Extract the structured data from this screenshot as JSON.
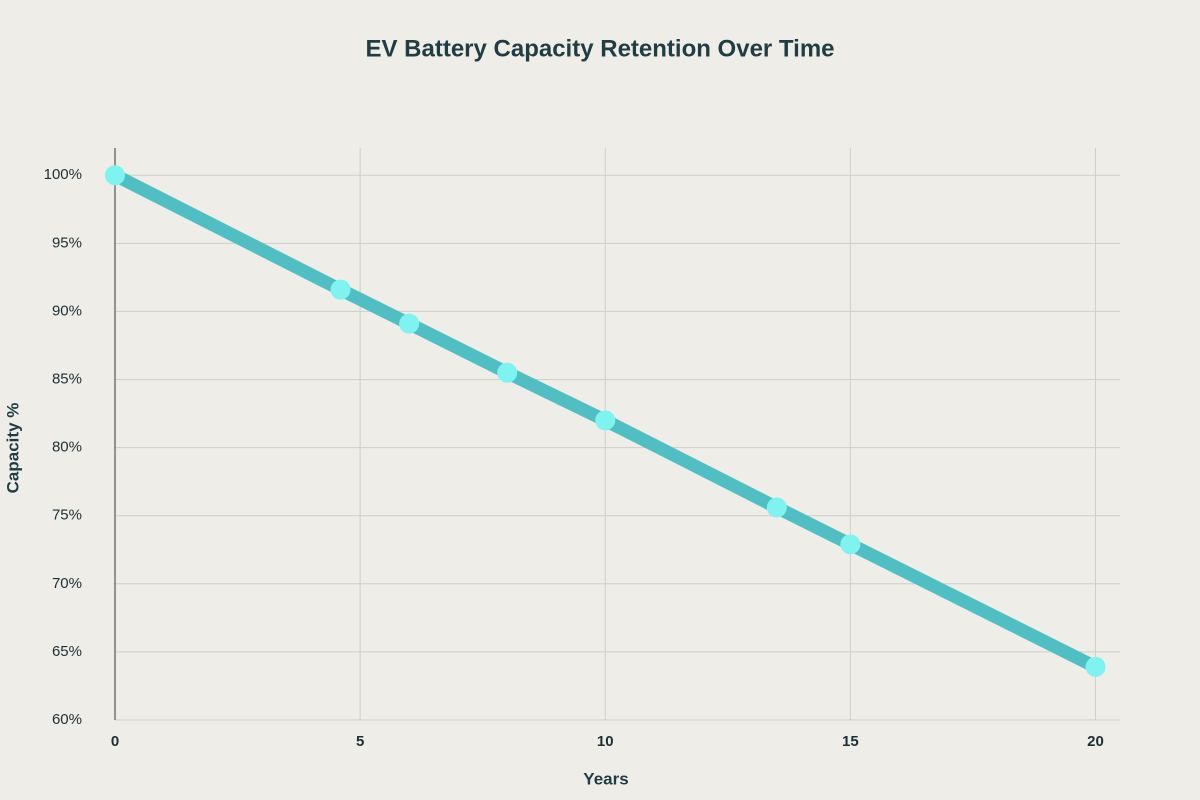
{
  "chart_data": {
    "type": "line",
    "title": "EV Battery Capacity Retention Over Time",
    "x_label": "Years",
    "y_label": "Capacity %",
    "x": [
      0,
      4.6,
      6,
      8,
      10,
      13.5,
      15,
      20
    ],
    "values": [
      100,
      91.6,
      89.1,
      85.5,
      82,
      75.6,
      72.9,
      63.9
    ],
    "color": "#4fbfc4",
    "marker_color": "#7ff3f0",
    "xlim": [
      0,
      20.5
    ],
    "xticks": [
      0,
      5,
      10,
      15,
      20
    ],
    "ylim": [
      60,
      102
    ],
    "yticks": [
      {
        "value": 60,
        "label": "60%"
      },
      {
        "value": 65,
        "label": "65%"
      },
      {
        "value": 70,
        "label": "70%"
      },
      {
        "value": 75,
        "label": "75%"
      },
      {
        "value": 80,
        "label": "80%"
      },
      {
        "value": 85,
        "label": "85%"
      },
      {
        "value": 90,
        "label": "90%"
      },
      {
        "value": 95,
        "label": "95%"
      },
      {
        "value": 100,
        "label": "100%"
      }
    ],
    "grid": true
  }
}
